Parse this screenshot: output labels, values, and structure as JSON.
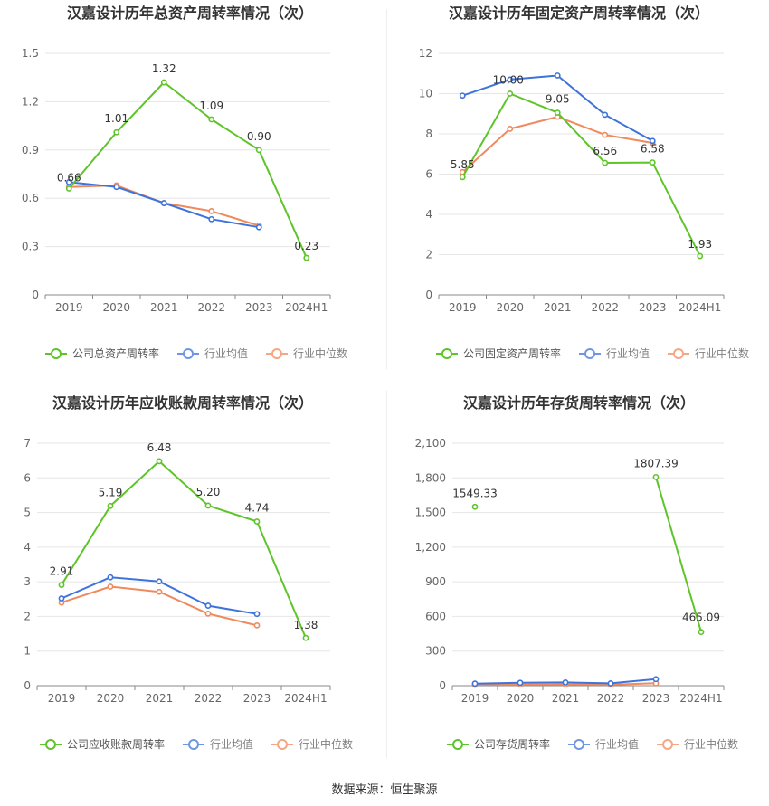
{
  "source_label": "数据来源：恒生聚源",
  "legend": {
    "industry_avg": "行业均值",
    "industry_median": "行业中位数"
  },
  "colors": {
    "company": "#5ec429",
    "industry_avg": "#3e73db",
    "industry_median": "#f08a5d",
    "grid": "#e6e6e6",
    "axis": "#888888",
    "title": "#333333",
    "label": "#666666"
  },
  "chart_data": [
    {
      "type": "line",
      "title": "汉嘉设计历年总资产周转率情况（次）",
      "categories": [
        "2019",
        "2020",
        "2021",
        "2022",
        "2023",
        "2024H1"
      ],
      "ylim": [
        0,
        1.5
      ],
      "yticks": [
        "0",
        "0.3",
        "0.6",
        "0.9",
        "1.2",
        "1.5"
      ],
      "ytick_values": [
        0,
        0.3,
        0.6,
        0.9,
        1.2,
        1.5
      ],
      "series": [
        {
          "name": "公司总资产周转率",
          "key": "company",
          "values": [
            0.66,
            1.01,
            1.32,
            1.09,
            0.9,
            0.23
          ],
          "labels": [
            "0.66",
            "1.01",
            "1.32",
            "1.09",
            "0.90",
            "0.23"
          ]
        },
        {
          "name": "行业均值",
          "key": "industry_avg",
          "values": [
            0.7,
            0.67,
            0.57,
            0.47,
            0.42,
            null
          ]
        },
        {
          "name": "行业中位数",
          "key": "industry_median",
          "values": [
            0.67,
            0.68,
            0.57,
            0.52,
            0.43,
            null
          ]
        }
      ]
    },
    {
      "type": "line",
      "title": "汉嘉设计历年固定资产周转率情况（次）",
      "categories": [
        "2019",
        "2020",
        "2021",
        "2022",
        "2023",
        "2024H1"
      ],
      "ylim": [
        0,
        12
      ],
      "yticks": [
        "0",
        "2",
        "4",
        "6",
        "8",
        "10",
        "12"
      ],
      "ytick_values": [
        0,
        2,
        4,
        6,
        8,
        10,
        12
      ],
      "series": [
        {
          "name": "公司固定资产周转率",
          "key": "company",
          "values": [
            5.85,
            10.0,
            9.05,
            6.56,
            6.58,
            1.93
          ],
          "labels": [
            "5.85",
            "10.00",
            "9.05",
            "6.56",
            "6.58",
            "1.93"
          ]
        },
        {
          "name": "行业均值",
          "key": "industry_avg",
          "values": [
            9.9,
            10.7,
            10.9,
            8.95,
            7.65,
            null
          ]
        },
        {
          "name": "行业中位数",
          "key": "industry_median",
          "values": [
            6.1,
            8.25,
            8.85,
            7.95,
            7.55,
            null
          ]
        }
      ]
    },
    {
      "type": "line",
      "title": "汉嘉设计历年应收账款周转率情况（次）",
      "categories": [
        "2019",
        "2020",
        "2021",
        "2022",
        "2023",
        "2024H1"
      ],
      "ylim": [
        0,
        7
      ],
      "yticks": [
        "0",
        "1",
        "2",
        "3",
        "4",
        "5",
        "6",
        "7"
      ],
      "ytick_values": [
        0,
        1,
        2,
        3,
        4,
        5,
        6,
        7
      ],
      "series": [
        {
          "name": "公司应收账款周转率",
          "key": "company",
          "values": [
            2.91,
            5.19,
            6.48,
            5.2,
            4.74,
            1.38
          ],
          "labels": [
            "2.91",
            "5.19",
            "6.48",
            "5.20",
            "4.74",
            "1.38"
          ]
        },
        {
          "name": "行业均值",
          "key": "industry_avg",
          "values": [
            2.52,
            3.13,
            3.01,
            2.31,
            2.07,
            null
          ]
        },
        {
          "name": "行业中位数",
          "key": "industry_median",
          "values": [
            2.4,
            2.86,
            2.71,
            2.08,
            1.74,
            null
          ]
        }
      ]
    },
    {
      "type": "line",
      "title": "汉嘉设计历年存货周转率情况（次）",
      "categories": [
        "2019",
        "2020",
        "2021",
        "2022",
        "2023",
        "2024H1"
      ],
      "ylim": [
        0,
        2100
      ],
      "yticks": [
        "0",
        "300",
        "600",
        "900",
        "1,200",
        "1,500",
        "1,800",
        "2,100"
      ],
      "ytick_values": [
        0,
        300,
        600,
        900,
        1200,
        1500,
        1800,
        2100
      ],
      "series": [
        {
          "name": "公司存货周转率",
          "key": "company",
          "values": [
            1549.33,
            null,
            null,
            null,
            1807.39,
            465.09
          ],
          "labels": [
            "1549.33",
            "",
            "",
            "",
            "1807.39",
            "465.09"
          ]
        },
        {
          "name": "行业均值",
          "key": "industry_avg",
          "values": [
            18,
            25,
            28,
            20,
            57,
            null
          ]
        },
        {
          "name": "行业中位数",
          "key": "industry_median",
          "values": [
            8,
            10,
            11,
            9,
            21,
            null
          ]
        }
      ]
    }
  ]
}
